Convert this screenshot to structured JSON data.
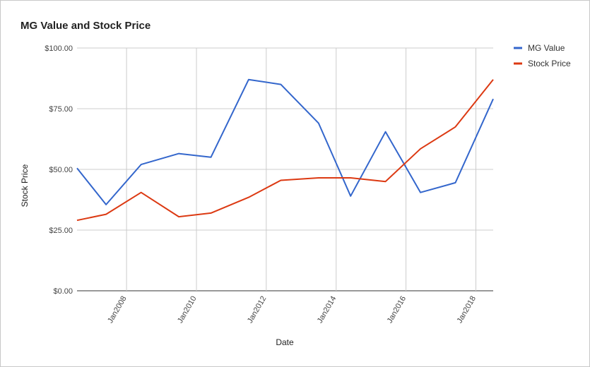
{
  "chart_data": {
    "type": "line",
    "title": "MG Value and Stock Price",
    "xlabel": "Date",
    "ylabel": "Stock Price",
    "x_ticks": [
      "Jan2008",
      "Jan2010",
      "Jan2012",
      "Jan2014",
      "Jan2016",
      "Jan2018"
    ],
    "xlim": [
      "2006-08-01",
      "2018-07-01"
    ],
    "y_ticks": [
      "$0.00",
      "$25.00",
      "$50.00",
      "$75.00",
      "$100.00"
    ],
    "ylim": [
      0,
      100
    ],
    "grid": true,
    "legend_position": "right",
    "series": [
      {
        "name": "MG Value",
        "color": "#3366cc",
        "points": [
          {
            "x": "2006-08-01",
            "y": 50.5
          },
          {
            "x": "2007-06-01",
            "y": 35.5
          },
          {
            "x": "2008-06-01",
            "y": 52.0
          },
          {
            "x": "2009-07-01",
            "y": 56.5
          },
          {
            "x": "2010-06-01",
            "y": 55.0
          },
          {
            "x": "2011-07-01",
            "y": 87.0
          },
          {
            "x": "2012-06-01",
            "y": 85.0
          },
          {
            "x": "2013-07-01",
            "y": 69.0
          },
          {
            "x": "2014-06-01",
            "y": 39.0
          },
          {
            "x": "2015-06-01",
            "y": 65.5
          },
          {
            "x": "2016-06-01",
            "y": 40.5
          },
          {
            "x": "2017-06-01",
            "y": 44.5
          },
          {
            "x": "2018-07-01",
            "y": 79.0
          }
        ]
      },
      {
        "name": "Stock Price",
        "color": "#dc3912",
        "points": [
          {
            "x": "2006-08-01",
            "y": 29.0
          },
          {
            "x": "2007-06-01",
            "y": 31.5
          },
          {
            "x": "2008-06-01",
            "y": 40.5
          },
          {
            "x": "2009-07-01",
            "y": 30.5
          },
          {
            "x": "2010-06-01",
            "y": 32.0
          },
          {
            "x": "2011-07-01",
            "y": 38.5
          },
          {
            "x": "2012-06-01",
            "y": 45.5
          },
          {
            "x": "2013-07-01",
            "y": 46.5
          },
          {
            "x": "2014-06-01",
            "y": 46.5
          },
          {
            "x": "2015-06-01",
            "y": 45.0
          },
          {
            "x": "2016-06-01",
            "y": 58.5
          },
          {
            "x": "2017-06-01",
            "y": 67.5
          },
          {
            "x": "2018-07-01",
            "y": 87.0
          }
        ]
      }
    ]
  }
}
